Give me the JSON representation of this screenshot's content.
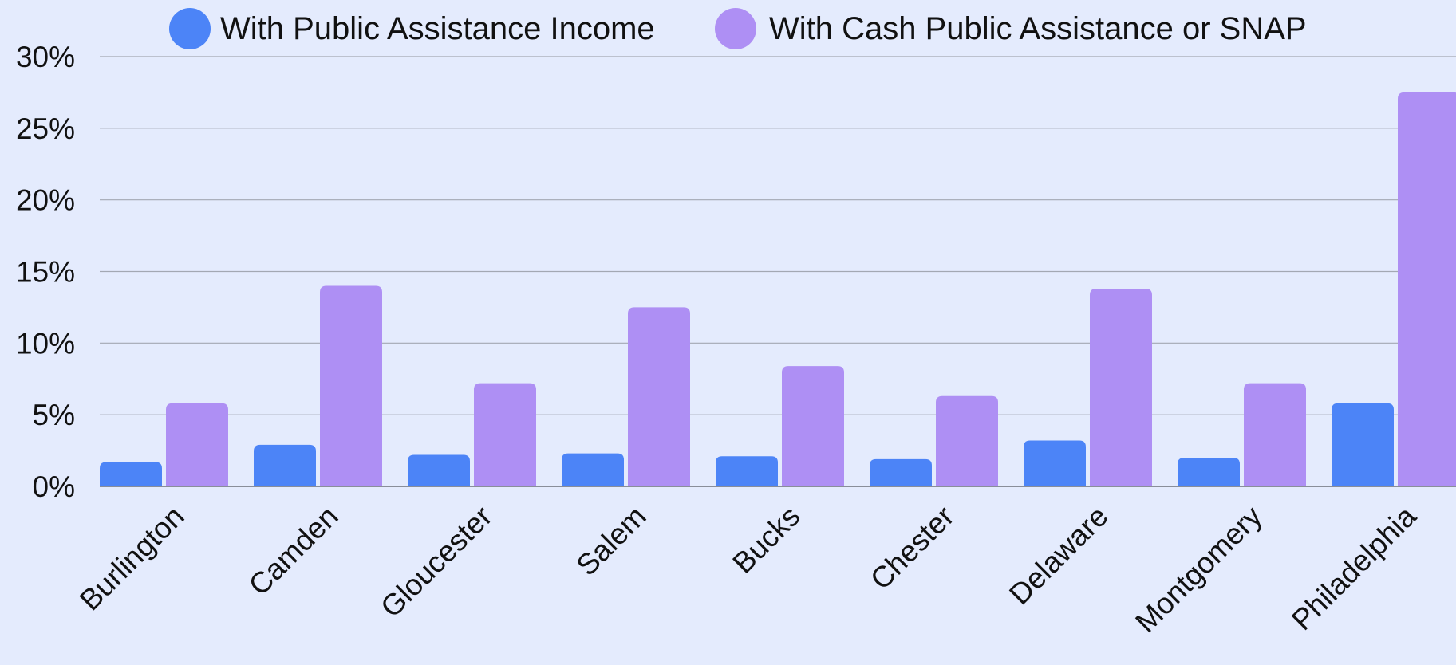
{
  "chart_data": {
    "type": "bar",
    "title": "",
    "xlabel": "",
    "ylabel": "",
    "categories": [
      "Burlington",
      "Camden",
      "Gloucester",
      "Salem",
      "Bucks",
      "Chester",
      "Delaware",
      "Montgomery",
      "Philadelphia"
    ],
    "series": [
      {
        "name": "With Public Assistance Income",
        "color": "#4c84f7",
        "values": [
          1.7,
          2.9,
          2.2,
          2.3,
          2.1,
          1.9,
          3.2,
          2.0,
          5.8
        ]
      },
      {
        "name": "With Cash Public Assistance or SNAP",
        "color": "#ae8ff4",
        "values": [
          5.8,
          14.0,
          7.2,
          12.5,
          8.4,
          6.3,
          13.8,
          7.2,
          27.5
        ]
      }
    ],
    "ylim": [
      0,
      30
    ],
    "y_ticks": [
      0,
      5,
      10,
      15,
      20,
      25,
      30
    ],
    "y_tick_labels": [
      "0%",
      "5%",
      "10%",
      "15%",
      "20%",
      "25%",
      "30%"
    ],
    "grid": true,
    "legend_position": "top",
    "background": "#e4ebfd",
    "gridline_color": "#a3a8b3"
  }
}
